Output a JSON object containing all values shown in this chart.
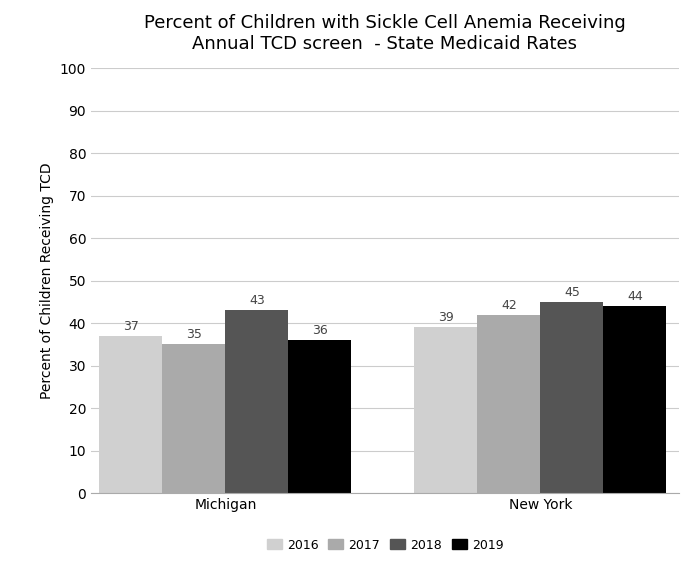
{
  "title": "Percent of Children with Sickle Cell Anemia Receiving\nAnnual TCD screen  - State Medicaid Rates",
  "ylabel": "Percent of Children Receiving TCD",
  "categories": [
    "Michigan",
    "New York"
  ],
  "years": [
    "2016",
    "2017",
    "2018",
    "2019"
  ],
  "values": {
    "Michigan": [
      37,
      35,
      43,
      36
    ],
    "New York": [
      39,
      42,
      45,
      44
    ]
  },
  "bar_colors": [
    "#d0d0d0",
    "#aaaaaa",
    "#555555",
    "#000000"
  ],
  "ylim": [
    0,
    100
  ],
  "yticks": [
    0,
    10,
    20,
    30,
    40,
    50,
    60,
    70,
    80,
    90,
    100
  ],
  "bar_width": 0.15,
  "group_centers": [
    0.32,
    1.07
  ],
  "background_color": "#ffffff",
  "title_fontsize": 13,
  "label_fontsize": 10,
  "tick_fontsize": 10,
  "legend_fontsize": 9,
  "annotation_fontsize": 9
}
